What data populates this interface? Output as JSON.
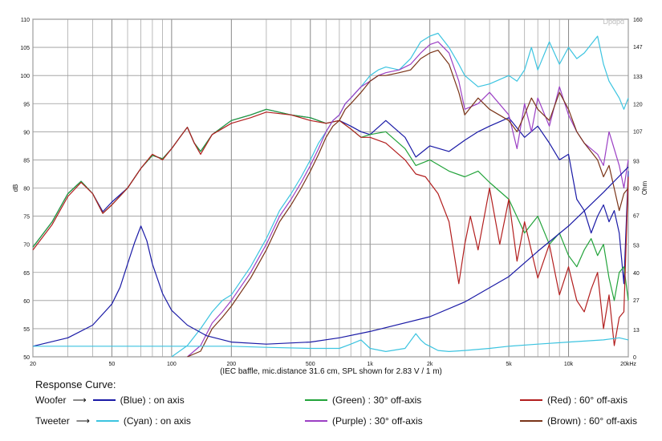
{
  "chart_data": {
    "type": "line",
    "caption": "(IEC baffle, mic.distance 31.6 cm, SPL shown for 2.83 V / 1 m)",
    "ylabel": "dB",
    "y2label": "Ohm",
    "xunit": "Hz",
    "xscale": "log",
    "grid": true,
    "xlim": [
      20,
      20000
    ],
    "ylim": [
      50,
      110
    ],
    "y2lim": [
      0,
      160
    ],
    "x_ticks": [
      20,
      50,
      100,
      200,
      500,
      1000,
      2000,
      5000,
      10000,
      20000
    ],
    "x_tick_labels": [
      "20",
      "50",
      "100",
      "200",
      "500",
      "1k",
      "2k",
      "5k",
      "10k",
      "20kHz"
    ],
    "y_ticks": [
      50,
      55,
      60,
      65,
      70,
      75,
      80,
      85,
      90,
      95,
      100,
      105,
      110
    ],
    "y2_ticks": [
      0,
      13,
      27,
      40,
      53,
      67,
      80,
      93,
      107,
      120,
      133,
      147,
      160
    ],
    "series": [
      {
        "name": "Woofer (Blue) : on axis",
        "color": "#1a1aa6",
        "x": [
          20,
          25,
          30,
          35,
          40,
          45,
          50,
          60,
          70,
          80,
          90,
          100,
          110,
          120,
          130,
          140,
          160,
          200,
          250,
          300,
          400,
          500,
          600,
          700,
          800,
          900,
          1000,
          1200,
          1500,
          1700,
          2000,
          2500,
          3000,
          3500,
          4000,
          5000,
          6000,
          7000,
          8000,
          9000,
          10000,
          11000,
          12000,
          13000,
          14000,
          15000,
          16000,
          17000,
          18000,
          19000,
          20000
        ],
        "y": [
          69.5,
          74,
          79,
          81.2,
          79,
          75.8,
          77.5,
          80,
          83.5,
          85.8,
          85.2,
          87,
          89,
          90.8,
          88,
          86.5,
          89.5,
          92,
          93,
          94,
          93,
          92.5,
          91.5,
          92,
          91,
          90,
          89.5,
          92,
          89,
          85.5,
          87.5,
          86.5,
          88.5,
          90,
          91,
          92.5,
          89,
          91,
          88,
          85,
          86,
          78,
          76,
          72,
          75,
          77,
          74,
          76,
          72,
          63,
          83
        ]
      },
      {
        "name": "Woofer (Green) : 30° off-axis",
        "color": "#22a33a",
        "x": [
          20,
          25,
          30,
          35,
          40,
          45,
          50,
          60,
          70,
          80,
          90,
          100,
          110,
          120,
          130,
          140,
          160,
          200,
          250,
          300,
          400,
          500,
          600,
          700,
          800,
          900,
          1000,
          1200,
          1500,
          1700,
          2000,
          2500,
          3000,
          3500,
          4000,
          5000,
          6000,
          7000,
          8000,
          9000,
          10000,
          11000,
          12000,
          13000,
          14000,
          15000,
          16000,
          17000,
          18000,
          19000,
          20000
        ],
        "y": [
          69.5,
          74,
          79,
          81.2,
          79,
          75.5,
          77,
          80,
          83.5,
          85.8,
          85.2,
          87,
          89,
          90.8,
          88,
          86.5,
          89.5,
          92,
          93,
          94,
          93,
          92.5,
          91.5,
          92,
          90.5,
          89,
          89.5,
          90,
          87,
          84,
          85,
          83,
          82,
          83,
          81,
          78,
          72,
          75,
          70,
          72,
          68,
          66,
          69,
          71,
          68,
          70,
          64,
          60,
          65,
          66,
          60
        ]
      },
      {
        "name": "Woofer (Red) : 60° off-axis",
        "color": "#b21e1e",
        "x": [
          20,
          25,
          30,
          35,
          40,
          45,
          50,
          60,
          70,
          80,
          90,
          100,
          110,
          120,
          130,
          140,
          160,
          200,
          250,
          300,
          400,
          500,
          600,
          700,
          800,
          900,
          1000,
          1200,
          1500,
          1700,
          1900,
          2200,
          2500,
          2800,
          3000,
          3200,
          3500,
          4000,
          4500,
          5000,
          5500,
          6000,
          7000,
          8000,
          9000,
          10000,
          11000,
          12000,
          13000,
          14000,
          15000,
          16000,
          17000,
          18000,
          19000,
          20000
        ],
        "y": [
          69,
          73.5,
          78.5,
          81,
          79,
          75.5,
          77,
          80,
          83.5,
          86,
          85,
          87,
          89,
          90.8,
          88,
          86,
          89.5,
          91.5,
          92.5,
          93.5,
          93,
          92,
          91.5,
          92,
          90.5,
          89,
          89,
          88,
          85,
          82.5,
          82,
          79,
          74,
          63,
          70,
          75,
          69,
          80,
          70,
          78,
          67,
          74,
          64,
          70,
          61,
          66,
          60,
          58,
          62,
          65,
          55,
          61,
          52,
          57,
          58,
          82
        ]
      },
      {
        "name": "Tweeter (Cyan) : on axis",
        "color": "#3cc4e0",
        "x": [
          100,
          120,
          140,
          160,
          180,
          200,
          250,
          300,
          350,
          400,
          450,
          500,
          550,
          600,
          650,
          700,
          750,
          800,
          900,
          1000,
          1100,
          1200,
          1400,
          1600,
          1800,
          2000,
          2200,
          2500,
          2800,
          3000,
          3500,
          4000,
          5000,
          5500,
          6000,
          6500,
          7000,
          8000,
          9000,
          10000,
          11000,
          12000,
          14000,
          15000,
          16000,
          18000,
          19000,
          20000
        ],
        "y": [
          50,
          52,
          55,
          58,
          60,
          61,
          66,
          71,
          76,
          79,
          82,
          85,
          88,
          90,
          92,
          93,
          95,
          96,
          98,
          100,
          101,
          101.5,
          101,
          103,
          106,
          107,
          107.5,
          105,
          102,
          100,
          98,
          98.5,
          100,
          99,
          101,
          105,
          101,
          106,
          102,
          105,
          103,
          104,
          107,
          102,
          99,
          96,
          94,
          96
        ]
      },
      {
        "name": "Tweeter (Purple) : 30° off-axis",
        "color": "#9b3fc4",
        "x": [
          120,
          140,
          160,
          180,
          200,
          250,
          300,
          350,
          400,
          450,
          500,
          550,
          600,
          650,
          700,
          750,
          800,
          900,
          1000,
          1100,
          1200,
          1400,
          1600,
          1800,
          2000,
          2200,
          2500,
          2800,
          3000,
          3500,
          4000,
          5000,
          5500,
          6000,
          6500,
          7000,
          8000,
          9000,
          10000,
          11000,
          12000,
          14000,
          15000,
          16000,
          18000,
          19000,
          20000
        ],
        "y": [
          50,
          52,
          56,
          58,
          60,
          65,
          70,
          75,
          78,
          81,
          84,
          87,
          90,
          92,
          93,
          95,
          96,
          98,
          99,
          100,
          100.5,
          101,
          102,
          104,
          105.5,
          106,
          104,
          99,
          94,
          95,
          97,
          93,
          87,
          95,
          90,
          96,
          91,
          98,
          93,
          90,
          88,
          86,
          84,
          90,
          84,
          80,
          85
        ]
      },
      {
        "name": "Tweeter (Brown) : 60° off-axis",
        "color": "#7a3418",
        "x": [
          120,
          140,
          160,
          180,
          200,
          250,
          300,
          350,
          400,
          450,
          500,
          550,
          600,
          650,
          700,
          750,
          800,
          900,
          1000,
          1100,
          1200,
          1400,
          1600,
          1800,
          2000,
          2200,
          2500,
          2800,
          3000,
          3500,
          4000,
          5000,
          5500,
          6000,
          6500,
          7000,
          8000,
          9000,
          10000,
          11000,
          12000,
          14000,
          15000,
          16000,
          18000,
          19000,
          20000
        ],
        "y": [
          50,
          51,
          55,
          57,
          59,
          64,
          69,
          74,
          77,
          80,
          83,
          86,
          89,
          91,
          92,
          94,
          95,
          97,
          99,
          100,
          100,
          100.5,
          101,
          103,
          104,
          104.5,
          102,
          97,
          93,
          96,
          94,
          92,
          90,
          93,
          96,
          94,
          92,
          97,
          94,
          90,
          88,
          85,
          82,
          84,
          76,
          79,
          80
        ]
      },
      {
        "name": "Woofer impedance (Blue)",
        "color": "#1a1aa6",
        "axis": "y2",
        "x": [
          20,
          30,
          40,
          50,
          55,
          60,
          65,
          70,
          75,
          80,
          90,
          100,
          120,
          150,
          200,
          300,
          500,
          700,
          1000,
          2000,
          3000,
          5000,
          7000,
          10000,
          15000,
          20000
        ],
        "y": [
          5,
          9,
          15,
          25,
          33,
          44,
          54,
          62,
          55,
          44,
          30,
          22,
          15,
          10,
          7,
          6,
          7,
          9,
          12,
          19,
          26,
          38,
          50,
          62,
          78,
          90
        ]
      },
      {
        "name": "Tweeter impedance (Cyan)",
        "color": "#3cc4e0",
        "axis": "y2",
        "x": [
          20,
          100,
          150,
          200,
          300,
          500,
          700,
          800,
          900,
          1000,
          1200,
          1500,
          1700,
          1800,
          1900,
          2000,
          2200,
          2500,
          3000,
          4000,
          5000,
          7000,
          10000,
          15000,
          18000,
          20000
        ],
        "y": [
          5,
          5,
          5,
          5,
          4.5,
          4,
          4,
          6,
          8,
          4,
          2.5,
          4,
          11,
          8,
          6,
          5,
          3,
          2.5,
          3,
          4,
          5,
          6,
          7,
          8,
          9,
          8
        ]
      }
    ],
    "legend": {
      "title": "Response Curve:",
      "woofer_label": "Woofer",
      "tweeter_label": "Tweeter",
      "items": [
        {
          "text": "(Blue) : on axis",
          "color": "#1a1aa6"
        },
        {
          "text": "(Green) : 30° off-axis",
          "color": "#22a33a"
        },
        {
          "text": "(Red) : 60° off-axis",
          "color": "#b21e1e"
        },
        {
          "text": "(Cyan) : on axis",
          "color": "#3cc4e0"
        },
        {
          "text": "(Purple) : 30° off-axis",
          "color": "#9b3fc4"
        },
        {
          "text": "(Brown) : 60° off-axis",
          "color": "#7a3418"
        }
      ]
    },
    "watermark": "Dpdpd"
  }
}
